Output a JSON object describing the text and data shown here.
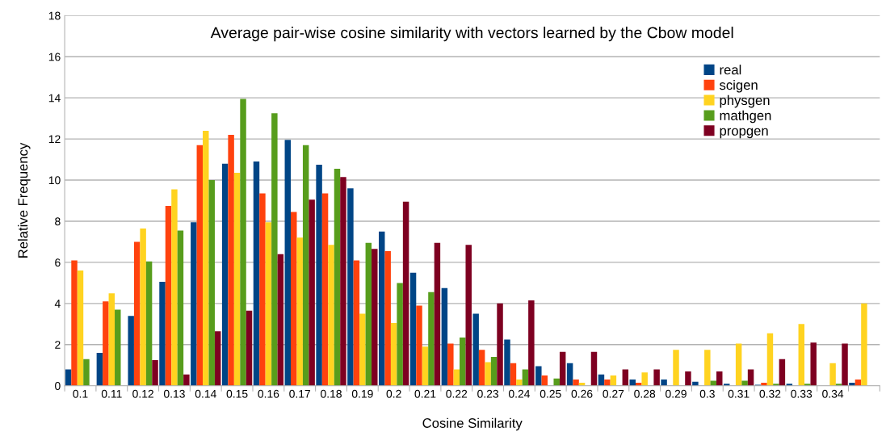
{
  "chart_data": {
    "type": "bar",
    "title": "Average pair-wise cosine similarity with vectors learned by the Cbow model",
    "xlabel": "Cosine Similarity",
    "ylabel": "Relative Frequency",
    "categories": [
      "0.1",
      "0.11",
      "0.12",
      "0.13",
      "0.14",
      "0.15",
      "0.16",
      "0.17",
      "0.18",
      "0.19",
      "0.2",
      "0.21",
      "0.22",
      "0.23",
      "0.24",
      "0.25",
      "0.26",
      "0.27",
      "0.28",
      "0.29",
      "0.3",
      "0.31",
      "0.32",
      "0.33",
      "0.34",
      null
    ],
    "series": [
      {
        "name": "real",
        "color": "#004586",
        "values": [
          0.8,
          1.6,
          3.4,
          5.05,
          7.95,
          10.8,
          10.9,
          11.95,
          10.75,
          9.6,
          7.5,
          5.5,
          4.75,
          3.5,
          2.25,
          0.95,
          1.1,
          0.55,
          0.3,
          0.3,
          0.2,
          0.1,
          0.05,
          0.1,
          0,
          0.15
        ]
      },
      {
        "name": "scigen",
        "color": "#ff420e",
        "values": [
          6.1,
          4.1,
          7.0,
          8.75,
          11.7,
          12.2,
          9.35,
          8.45,
          9.35,
          6.1,
          6.55,
          3.9,
          2.05,
          1.75,
          1.1,
          0.5,
          0.3,
          0.3,
          0.15,
          0,
          0,
          0,
          0.15,
          0,
          0,
          0.3
        ]
      },
      {
        "name": "physgen",
        "color": "#ffd320",
        "values": [
          5.6,
          4.5,
          7.65,
          9.55,
          12.4,
          10.35,
          7.95,
          7.2,
          6.85,
          3.5,
          3.05,
          1.9,
          0.8,
          1.15,
          0.3,
          0,
          0.15,
          0.5,
          0.65,
          1.75,
          1.75,
          2.05,
          2.55,
          3.0,
          1.1,
          4.0
        ]
      },
      {
        "name": "mathgen",
        "color": "#579d1c",
        "values": [
          1.3,
          3.7,
          6.05,
          7.55,
          10.0,
          13.95,
          13.25,
          11.7,
          10.55,
          6.95,
          5.0,
          4.55,
          2.35,
          1.4,
          0.8,
          0.35,
          0,
          0,
          0,
          0,
          0.25,
          0.25,
          0.1,
          0.1,
          0.1,
          0
        ]
      },
      {
        "name": "propgen",
        "color": "#7e0021",
        "values": [
          0,
          0,
          1.25,
          0.55,
          2.65,
          3.65,
          6.4,
          9.05,
          10.15,
          6.65,
          8.95,
          6.95,
          6.85,
          4.0,
          4.15,
          1.65,
          1.65,
          0.8,
          0.8,
          0.7,
          0.7,
          0.8,
          1.3,
          2.1,
          2.05,
          0
        ]
      }
    ],
    "ylim": [
      0,
      18
    ],
    "yticks": [
      0,
      2,
      4,
      6,
      8,
      10,
      12,
      14,
      16,
      18
    ],
    "grid": "y",
    "legend": "top right"
  }
}
